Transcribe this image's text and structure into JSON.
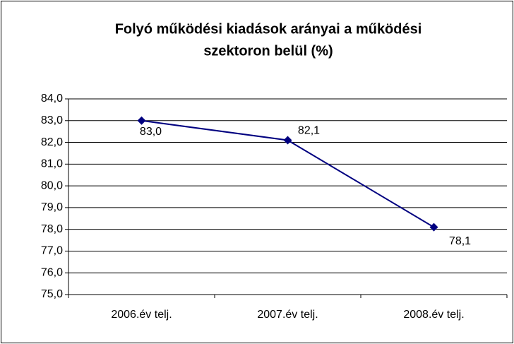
{
  "chart_data": {
    "type": "line",
    "title": [
      "Folyó működési kiadások arányai a működési",
      "szektoron belül (%)"
    ],
    "categories": [
      "2006.év telj.",
      "2007.év telj.",
      "2008.év telj."
    ],
    "series": [
      {
        "color": "#000080",
        "values": [
          83.0,
          82.1,
          78.1
        ],
        "value_labels": [
          "83,0",
          "82,1",
          "78,1"
        ]
      }
    ],
    "ylim": [
      75,
      84
    ],
    "yticks": [
      {
        "value": 75,
        "label": "75,0"
      },
      {
        "value": 76,
        "label": "76,0"
      },
      {
        "value": 77,
        "label": "77,0"
      },
      {
        "value": 78,
        "label": "78,0"
      },
      {
        "value": 79,
        "label": "79,0"
      },
      {
        "value": 80,
        "label": "80,0"
      },
      {
        "value": 81,
        "label": "81,0"
      },
      {
        "value": 82,
        "label": "82,0"
      },
      {
        "value": 83,
        "label": "83,0"
      },
      {
        "value": 84,
        "label": "84,0"
      }
    ],
    "grid": true
  }
}
